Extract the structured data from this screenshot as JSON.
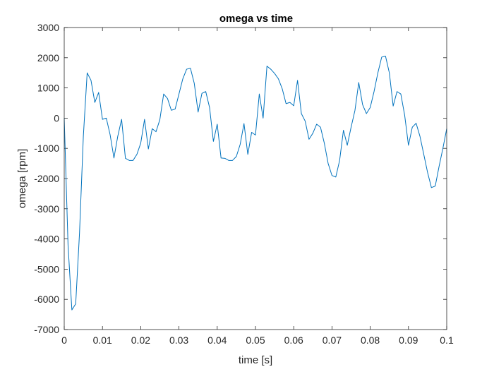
{
  "chart_data": {
    "type": "line",
    "title": "omega vs time",
    "xlabel": "time [s]",
    "ylabel": "omega [rpm]",
    "xlim": [
      0,
      0.1
    ],
    "ylim": [
      -7000,
      3000
    ],
    "x_ticks": [
      0,
      0.01,
      0.02,
      0.03,
      0.04,
      0.05,
      0.06,
      0.07,
      0.08,
      0.09,
      0.1
    ],
    "x_tick_labels": [
      "0",
      "0.01",
      "0.02",
      "0.03",
      "0.04",
      "0.05",
      "0.06",
      "0.07",
      "0.08",
      "0.09",
      "0.1"
    ],
    "y_ticks": [
      -7000,
      -6000,
      -5000,
      -4000,
      -3000,
      -2000,
      -1000,
      0,
      1000,
      2000,
      3000
    ],
    "y_tick_labels": [
      "-7000",
      "-6000",
      "-5000",
      "-4000",
      "-3000",
      "-2000",
      "-1000",
      "0",
      "1000",
      "2000",
      "3000"
    ],
    "grid": false,
    "line_color": "#0072BD",
    "series": [
      {
        "x": [
          0,
          0.001,
          0.002,
          0.003,
          0.004,
          0.005,
          0.006,
          0.007,
          0.008,
          0.009,
          0.01,
          0.011,
          0.012,
          0.013,
          0.014,
          0.015,
          0.016,
          0.017,
          0.018,
          0.019,
          0.02,
          0.021,
          0.022,
          0.023,
          0.024,
          0.025,
          0.026,
          0.027,
          0.028,
          0.029,
          0.03,
          0.031,
          0.032,
          0.033,
          0.034,
          0.035,
          0.036,
          0.037,
          0.038,
          0.039,
          0.04,
          0.041,
          0.042,
          0.043,
          0.044,
          0.045,
          0.046,
          0.047,
          0.048,
          0.049,
          0.05,
          0.051,
          0.052,
          0.053,
          0.054,
          0.055,
          0.056,
          0.057,
          0.058,
          0.059,
          0.06,
          0.061,
          0.062,
          0.063,
          0.064,
          0.065,
          0.066,
          0.067,
          0.068,
          0.069,
          0.07,
          0.071,
          0.072,
          0.073,
          0.074,
          0.075,
          0.076,
          0.077,
          0.078,
          0.079,
          0.08,
          0.081,
          0.082,
          0.083,
          0.084,
          0.085,
          0.086,
          0.087,
          0.088,
          0.089,
          0.09,
          0.091,
          0.092,
          0.093,
          0.094,
          0.095,
          0.096,
          0.097,
          0.098,
          0.099,
          0.1
        ],
        "y": [
          0,
          -4200,
          -6350,
          -6150,
          -3800,
          -600,
          1500,
          1250,
          520,
          850,
          -40,
          0,
          -550,
          -1320,
          -600,
          -40,
          -1330,
          -1400,
          -1400,
          -1200,
          -830,
          -40,
          -1020,
          -350,
          -450,
          -50,
          800,
          650,
          260,
          300,
          800,
          1300,
          1620,
          1650,
          1150,
          200,
          820,
          880,
          350,
          -770,
          -200,
          -1320,
          -1330,
          -1400,
          -1400,
          -1270,
          -870,
          -180,
          -1200,
          -470,
          -560,
          800,
          0,
          1720,
          1620,
          1480,
          1300,
          970,
          480,
          520,
          410,
          1250,
          150,
          -100,
          -700,
          -500,
          -200,
          -300,
          -830,
          -1500,
          -1900,
          -1950,
          -1400,
          -400,
          -900,
          -300,
          250,
          1180,
          450,
          150,
          350,
          880,
          1500,
          2020,
          2050,
          1500,
          400,
          880,
          800,
          100,
          -900,
          -300,
          -170,
          -600,
          -1200,
          -1800,
          -2300,
          -2250,
          -1600,
          -1000,
          -350
        ]
      }
    ]
  }
}
